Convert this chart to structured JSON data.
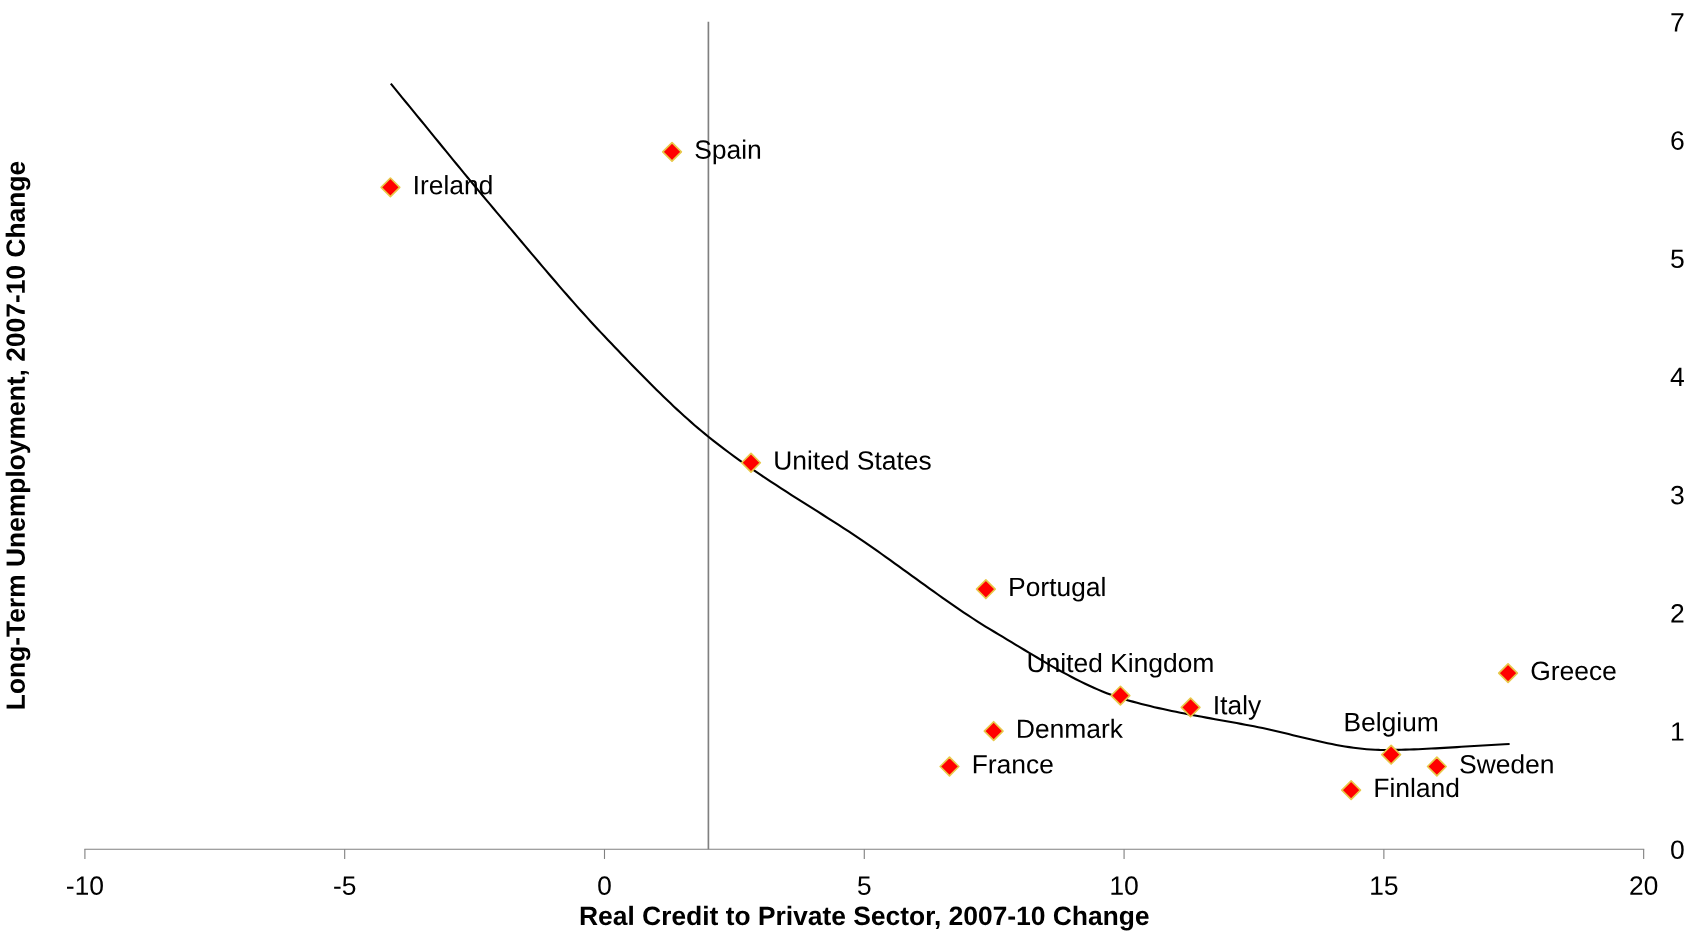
{
  "chart_data": {
    "type": "scatter",
    "xlabel": "Real Credit to Private Sector, 2007-10 Change",
    "ylabel": "Long-Term Unemployment, 2007-10 Change",
    "series": [
      {
        "color": "#ff0000",
        "marker": "diamond",
        "x": [
          -4.12,
          1.3,
          2.82,
          7.34,
          9.93,
          11.28,
          7.49,
          6.64,
          15.14,
          16.02,
          14.37,
          17.39
        ],
        "values": [
          5.6,
          5.9,
          3.27,
          2.2,
          1.3,
          1.2,
          1.0,
          0.7,
          0.8,
          0.7,
          0.5,
          1.49
        ]
      },
      {
        "type": "line",
        "color": "#000000",
        "x": [
          -4.1,
          -2,
          0,
          2,
          5,
          7.5,
          10,
          12.5,
          15,
          17.4
        ],
        "values": [
          6.47,
          5.35,
          4.34,
          3.49,
          2.6,
          1.84,
          1.27,
          1.04,
          0.84,
          0.89
        ]
      }
    ],
    "annotations": [
      {
        "text": "Ireland",
        "x": -4.12,
        "y": 5.6
      },
      {
        "text": "Spain",
        "x": 1.3,
        "y": 5.9
      },
      {
        "text": "United States",
        "x": 2.82,
        "y": 3.27
      },
      {
        "text": "Portugal",
        "x": 7.34,
        "y": 2.2
      },
      {
        "text": "United Kingdom",
        "x": 9.93,
        "y": 1.3
      },
      {
        "text": "Italy",
        "x": 11.28,
        "y": 1.2
      },
      {
        "text": "Denmark",
        "x": 7.49,
        "y": 1.0
      },
      {
        "text": "France",
        "x": 6.64,
        "y": 0.7
      },
      {
        "text": "Belgium",
        "x": 15.14,
        "y": 0.8
      },
      {
        "text": "Sweden",
        "x": 16.02,
        "y": 0.7
      },
      {
        "text": "Finland",
        "x": 14.37,
        "y": 0.5
      },
      {
        "text": "Greece",
        "x": 17.39,
        "y": 1.49
      }
    ],
    "xlim": [
      -10,
      20
    ],
    "xticks": [
      -10,
      -5,
      0,
      5,
      10,
      15,
      20
    ],
    "ylim": [
      0,
      7
    ],
    "yticks": [
      0,
      1,
      2,
      3,
      4,
      5,
      6,
      7
    ],
    "ref_lines": [
      {
        "axis": "x",
        "value": 2,
        "color": "#808080"
      }
    ],
    "grid": false,
    "legend": false
  }
}
